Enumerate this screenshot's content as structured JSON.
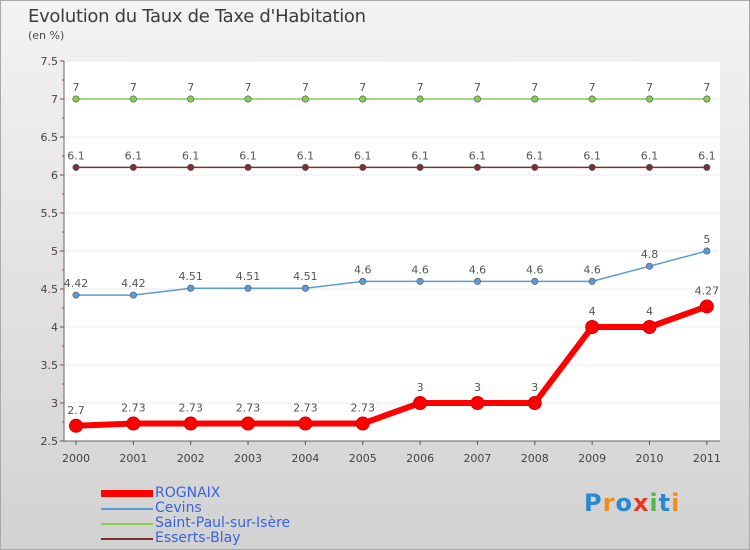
{
  "title": "Evolution du Taux de Taxe d'Habitation",
  "subtitle": "(en %)",
  "brand": {
    "text": "Proxiti",
    "colors": [
      "#2a87d0",
      "#f08c1c",
      "#2a87d0",
      "#e8381c",
      "#4fb848",
      "#2a87d0",
      "#f08c1c"
    ]
  },
  "chart_data": {
    "type": "line",
    "x": [
      "2000",
      "2001",
      "2002",
      "2003",
      "2004",
      "2005",
      "2006",
      "2007",
      "2008",
      "2009",
      "2010",
      "2011"
    ],
    "ylim": [
      2.5,
      7.5
    ],
    "yticks": [
      "2.5",
      "3",
      "3.5",
      "4",
      "4.5",
      "5",
      "5.5",
      "6",
      "6.5",
      "7",
      "7.5"
    ],
    "grid": "horizontal",
    "series": [
      {
        "name": "Saint-Paul-sur-Isère",
        "color": "#88cc55",
        "values": [
          7,
          7,
          7,
          7,
          7,
          7,
          7,
          7,
          7,
          7,
          7,
          7
        ],
        "labels": [
          "7",
          "7",
          "7",
          "7",
          "7",
          "7",
          "7",
          "7",
          "7",
          "7",
          "7",
          "7"
        ]
      },
      {
        "name": "Esserts-Blay",
        "color": "#7a3030",
        "values": [
          6.1,
          6.1,
          6.1,
          6.1,
          6.1,
          6.1,
          6.1,
          6.1,
          6.1,
          6.1,
          6.1,
          6.1
        ],
        "labels": [
          "6.1",
          "6.1",
          "6.1",
          "6.1",
          "6.1",
          "6.1",
          "6.1",
          "6.1",
          "6.1",
          "6.1",
          "6.1",
          "6.1"
        ]
      },
      {
        "name": "Cevins",
        "color": "#5b9bd5",
        "values": [
          4.42,
          4.42,
          4.51,
          4.51,
          4.51,
          4.6,
          4.6,
          4.6,
          4.6,
          4.6,
          4.8,
          5
        ],
        "labels": [
          "4.42",
          "4.42",
          "4.51",
          "4.51",
          "4.51",
          "4.6",
          "4.6",
          "4.6",
          "4.6",
          "4.6",
          "4.8",
          "5"
        ]
      },
      {
        "name": "ROGNAIX",
        "color": "#ff0000",
        "values": [
          2.7,
          2.73,
          2.73,
          2.73,
          2.73,
          2.73,
          3,
          3,
          3,
          4,
          4,
          4.27
        ],
        "labels": [
          "2.7",
          "2.73",
          "2.73",
          "2.73",
          "2.73",
          "2.73",
          "3",
          "3",
          "3",
          "4",
          "4",
          "4.27"
        ]
      }
    ],
    "legend": [
      "ROGNAIX",
      "Cevins",
      "Saint-Paul-sur-Isère",
      "Esserts-Blay"
    ]
  }
}
